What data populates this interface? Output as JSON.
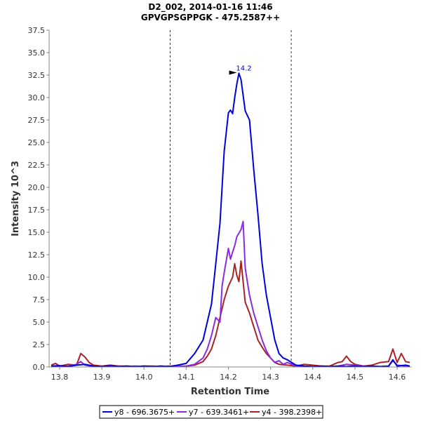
{
  "chart_data": {
    "type": "line",
    "title": "D2_002, 2014-01-16 11:46",
    "subtitle": "GPVGPSGPPGK - 475.2587++",
    "xlabel": "Retention Time",
    "ylabel": "Intensity 10^3",
    "xlim": [
      13.775,
      14.635
    ],
    "ylim": [
      0,
      37.5
    ],
    "xticks": [
      13.8,
      13.9,
      14.0,
      14.1,
      14.2,
      14.3,
      14.4,
      14.5,
      14.6
    ],
    "xtick_labels": [
      "13.8",
      "13.9",
      "14.0",
      "14.1",
      "14.2",
      "14.3",
      "14.4",
      "14.5",
      "14.6"
    ],
    "yticks": [
      0,
      2.5,
      5,
      7.5,
      10,
      12.5,
      15,
      17.5,
      20,
      22.5,
      25,
      27.5,
      30,
      32.5,
      35,
      37.5
    ],
    "ytick_labels": [
      "0.0",
      "2.5",
      "5.0",
      "7.5",
      "10.0",
      "12.5",
      "15.0",
      "17.5",
      "20.0",
      "22.5",
      "25.0",
      "27.5",
      "30.0",
      "32.5",
      "35.0",
      "37.5"
    ],
    "vlines": [
      14.062,
      14.349
    ],
    "annotation": {
      "label": "14.2",
      "x": 14.225,
      "y": 32.7,
      "color": "#0000cc"
    },
    "legend_position": "bottom",
    "series": [
      {
        "name": "y8 - 696.3675+",
        "color": "#0000dd",
        "points": [
          [
            13.78,
            0.1
          ],
          [
            13.8,
            0.15
          ],
          [
            13.82,
            0.05
          ],
          [
            13.84,
            0.2
          ],
          [
            13.86,
            0.3
          ],
          [
            13.88,
            0.1
          ],
          [
            13.9,
            0.05
          ],
          [
            13.92,
            0.15
          ],
          [
            13.94,
            0.05
          ],
          [
            13.96,
            0.1
          ],
          [
            13.98,
            0.05
          ],
          [
            14.0,
            0.1
          ],
          [
            14.02,
            0.05
          ],
          [
            14.04,
            0.1
          ],
          [
            14.06,
            0.05
          ],
          [
            14.08,
            0.2
          ],
          [
            14.1,
            0.4
          ],
          [
            14.12,
            1.5
          ],
          [
            14.14,
            3.0
          ],
          [
            14.15,
            5.0
          ],
          [
            14.16,
            7.0
          ],
          [
            14.17,
            11.5
          ],
          [
            14.18,
            16.0
          ],
          [
            14.19,
            24.0
          ],
          [
            14.2,
            28.3
          ],
          [
            14.205,
            28.6
          ],
          [
            14.21,
            28.2
          ],
          [
            14.215,
            30.0
          ],
          [
            14.22,
            31.5
          ],
          [
            14.225,
            32.7
          ],
          [
            14.23,
            32.0
          ],
          [
            14.24,
            28.5
          ],
          [
            14.25,
            27.5
          ],
          [
            14.26,
            22.0
          ],
          [
            14.27,
            17.0
          ],
          [
            14.28,
            11.5
          ],
          [
            14.29,
            8.0
          ],
          [
            14.3,
            5.5
          ],
          [
            14.31,
            3.0
          ],
          [
            14.32,
            1.5
          ],
          [
            14.33,
            1.0
          ],
          [
            14.34,
            0.8
          ],
          [
            14.35,
            0.5
          ],
          [
            14.36,
            0.2
          ],
          [
            14.38,
            0.1
          ],
          [
            14.4,
            0.05
          ],
          [
            14.42,
            0.1
          ],
          [
            14.44,
            0.05
          ],
          [
            14.46,
            0.1
          ],
          [
            14.48,
            0.05
          ],
          [
            14.5,
            0.1
          ],
          [
            14.52,
            0.05
          ],
          [
            14.54,
            0.1
          ],
          [
            14.56,
            0.05
          ],
          [
            14.58,
            0.1
          ],
          [
            14.59,
            0.8
          ],
          [
            14.6,
            0.1
          ],
          [
            14.62,
            0.2
          ],
          [
            14.63,
            0.1
          ]
        ]
      },
      {
        "name": "y7 - 639.3461+",
        "color": "#8a2be2",
        "points": [
          [
            13.78,
            0.05
          ],
          [
            13.8,
            0.1
          ],
          [
            13.82,
            0.1
          ],
          [
            13.84,
            0.3
          ],
          [
            13.85,
            0.6
          ],
          [
            13.86,
            0.2
          ],
          [
            13.88,
            0.05
          ],
          [
            13.9,
            0.1
          ],
          [
            13.92,
            0.05
          ],
          [
            13.94,
            0.1
          ],
          [
            13.96,
            0.05
          ],
          [
            13.98,
            0.1
          ],
          [
            14.0,
            0.05
          ],
          [
            14.02,
            0.05
          ],
          [
            14.04,
            0.1
          ],
          [
            14.06,
            0.05
          ],
          [
            14.08,
            0.1
          ],
          [
            14.1,
            0.1
          ],
          [
            14.12,
            0.3
          ],
          [
            14.14,
            1.0
          ],
          [
            14.15,
            2.0
          ],
          [
            14.16,
            3.5
          ],
          [
            14.17,
            5.5
          ],
          [
            14.18,
            5.0
          ],
          [
            14.185,
            9.0
          ],
          [
            14.19,
            10.5
          ],
          [
            14.2,
            13.2
          ],
          [
            14.205,
            12.0
          ],
          [
            14.21,
            12.8
          ],
          [
            14.215,
            13.5
          ],
          [
            14.22,
            14.5
          ],
          [
            14.23,
            15.3
          ],
          [
            14.235,
            16.2
          ],
          [
            14.24,
            11.0
          ],
          [
            14.245,
            9.5
          ],
          [
            14.25,
            8.0
          ],
          [
            14.26,
            6.0
          ],
          [
            14.27,
            4.5
          ],
          [
            14.28,
            3.0
          ],
          [
            14.29,
            1.8
          ],
          [
            14.3,
            1.0
          ],
          [
            14.31,
            0.5
          ],
          [
            14.32,
            0.7
          ],
          [
            14.33,
            0.3
          ],
          [
            14.34,
            0.5
          ],
          [
            14.36,
            0.1
          ],
          [
            14.38,
            0.05
          ],
          [
            14.4,
            0.05
          ],
          [
            14.42,
            0.1
          ],
          [
            14.44,
            0.05
          ],
          [
            14.46,
            0.1
          ],
          [
            14.48,
            0.3
          ],
          [
            14.5,
            0.2
          ],
          [
            14.52,
            0.1
          ],
          [
            14.54,
            0.1
          ],
          [
            14.56,
            0.05
          ],
          [
            14.58,
            0.1
          ],
          [
            14.59,
            0.7
          ],
          [
            14.6,
            0.2
          ],
          [
            14.62,
            0.1
          ],
          [
            14.63,
            0.1
          ]
        ]
      },
      {
        "name": "y4 - 398.2398+",
        "color": "#aa2222",
        "points": [
          [
            13.78,
            0.2
          ],
          [
            13.79,
            0.4
          ],
          [
            13.8,
            0.1
          ],
          [
            13.82,
            0.3
          ],
          [
            13.84,
            0.2
          ],
          [
            13.85,
            1.5
          ],
          [
            13.86,
            1.1
          ],
          [
            13.87,
            0.5
          ],
          [
            13.88,
            0.2
          ],
          [
            13.9,
            0.1
          ],
          [
            13.92,
            0.2
          ],
          [
            13.94,
            0.1
          ],
          [
            13.96,
            0.1
          ],
          [
            13.98,
            0.05
          ],
          [
            14.0,
            0.1
          ],
          [
            14.02,
            0.1
          ],
          [
            14.04,
            0.05
          ],
          [
            14.06,
            0.1
          ],
          [
            14.08,
            0.05
          ],
          [
            14.1,
            0.1
          ],
          [
            14.12,
            0.2
          ],
          [
            14.14,
            0.6
          ],
          [
            14.15,
            1.2
          ],
          [
            14.16,
            2.0
          ],
          [
            14.17,
            3.5
          ],
          [
            14.18,
            5.5
          ],
          [
            14.19,
            7.5
          ],
          [
            14.2,
            9.0
          ],
          [
            14.21,
            10.0
          ],
          [
            14.215,
            11.5
          ],
          [
            14.22,
            10.2
          ],
          [
            14.225,
            9.5
          ],
          [
            14.23,
            11.8
          ],
          [
            14.24,
            7.2
          ],
          [
            14.25,
            6.0
          ],
          [
            14.26,
            4.5
          ],
          [
            14.27,
            3.0
          ],
          [
            14.28,
            2.2
          ],
          [
            14.29,
            1.5
          ],
          [
            14.3,
            1.0
          ],
          [
            14.31,
            0.5
          ],
          [
            14.32,
            0.3
          ],
          [
            14.34,
            0.2
          ],
          [
            14.36,
            0.1
          ],
          [
            14.38,
            0.3
          ],
          [
            14.4,
            0.2
          ],
          [
            14.42,
            0.1
          ],
          [
            14.44,
            0.1
          ],
          [
            14.46,
            0.5
          ],
          [
            14.47,
            0.6
          ],
          [
            14.48,
            1.2
          ],
          [
            14.49,
            0.6
          ],
          [
            14.5,
            0.3
          ],
          [
            14.52,
            0.1
          ],
          [
            14.54,
            0.2
          ],
          [
            14.56,
            0.5
          ],
          [
            14.58,
            0.6
          ],
          [
            14.59,
            2.0
          ],
          [
            14.6,
            0.5
          ],
          [
            14.61,
            1.5
          ],
          [
            14.62,
            0.6
          ],
          [
            14.63,
            0.5
          ]
        ]
      }
    ]
  }
}
